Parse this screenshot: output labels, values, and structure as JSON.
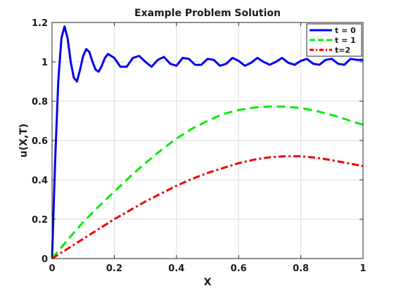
{
  "chart_data": {
    "type": "line",
    "title": "Example Problem Solution",
    "xlabel": "X",
    "ylabel": "u(X,T)",
    "xlim": [
      0,
      1
    ],
    "ylim": [
      0,
      1.2
    ],
    "xticks": [
      "0",
      "0.2",
      "0.4",
      "0.6",
      "0.8",
      "1"
    ],
    "yticks": [
      "0",
      "0.2",
      "0.4",
      "0.6",
      "0.8",
      "1",
      "1.2"
    ],
    "grid": true,
    "legend_position": "top-right",
    "series": [
      {
        "name": "t = 0",
        "color": "#0000ee",
        "style": "solid",
        "x": [
          0,
          0.01,
          0.02,
          0.03,
          0.04,
          0.05,
          0.06,
          0.07,
          0.08,
          0.09,
          0.1,
          0.11,
          0.12,
          0.13,
          0.14,
          0.15,
          0.16,
          0.17,
          0.18,
          0.2,
          0.22,
          0.24,
          0.26,
          0.28,
          0.3,
          0.32,
          0.34,
          0.36,
          0.38,
          0.4,
          0.42,
          0.44,
          0.46,
          0.48,
          0.5,
          0.52,
          0.54,
          0.56,
          0.58,
          0.6,
          0.62,
          0.64,
          0.66,
          0.68,
          0.7,
          0.72,
          0.74,
          0.76,
          0.78,
          0.8,
          0.82,
          0.84,
          0.86,
          0.88,
          0.9,
          0.92,
          0.94,
          0.96,
          0.98,
          1.0
        ],
        "y": [
          0,
          0.5,
          0.9,
          1.12,
          1.18,
          1.12,
          1.0,
          0.92,
          0.9,
          0.96,
          1.03,
          1.065,
          1.05,
          1.0,
          0.96,
          0.95,
          0.98,
          1.02,
          1.04,
          1.02,
          0.975,
          0.975,
          1.02,
          1.03,
          1.0,
          0.975,
          1.01,
          1.025,
          0.99,
          0.98,
          1.02,
          1.015,
          0.985,
          0.985,
          1.015,
          1.01,
          0.98,
          0.99,
          1.02,
          1.005,
          0.98,
          0.995,
          1.02,
          1.0,
          0.985,
          1.0,
          1.02,
          0.995,
          0.985,
          1.005,
          1.015,
          0.99,
          0.985,
          1.01,
          1.015,
          0.99,
          0.985,
          1.015,
          1.01,
          1.01
        ]
      },
      {
        "name": "t = 1",
        "color": "#00ee00",
        "style": "dashed",
        "x": [
          0,
          0.05,
          0.1,
          0.15,
          0.2,
          0.25,
          0.3,
          0.35,
          0.4,
          0.45,
          0.5,
          0.55,
          0.6,
          0.65,
          0.7,
          0.75,
          0.8,
          0.85,
          0.9,
          0.95,
          1.0
        ],
        "y": [
          0,
          0.095,
          0.185,
          0.265,
          0.34,
          0.415,
          0.485,
          0.55,
          0.61,
          0.66,
          0.7,
          0.735,
          0.755,
          0.768,
          0.773,
          0.772,
          0.765,
          0.75,
          0.73,
          0.705,
          0.68
        ]
      },
      {
        "name": "t=2",
        "color": "#ee0000",
        "style": "dashdot",
        "x": [
          0,
          0.05,
          0.1,
          0.15,
          0.2,
          0.25,
          0.3,
          0.35,
          0.4,
          0.45,
          0.5,
          0.55,
          0.6,
          0.65,
          0.7,
          0.75,
          0.8,
          0.85,
          0.9,
          0.95,
          1.0
        ],
        "y": [
          0,
          0.05,
          0.1,
          0.15,
          0.2,
          0.245,
          0.29,
          0.33,
          0.37,
          0.405,
          0.435,
          0.46,
          0.485,
          0.503,
          0.515,
          0.52,
          0.52,
          0.512,
          0.5,
          0.485,
          0.47
        ]
      }
    ]
  }
}
